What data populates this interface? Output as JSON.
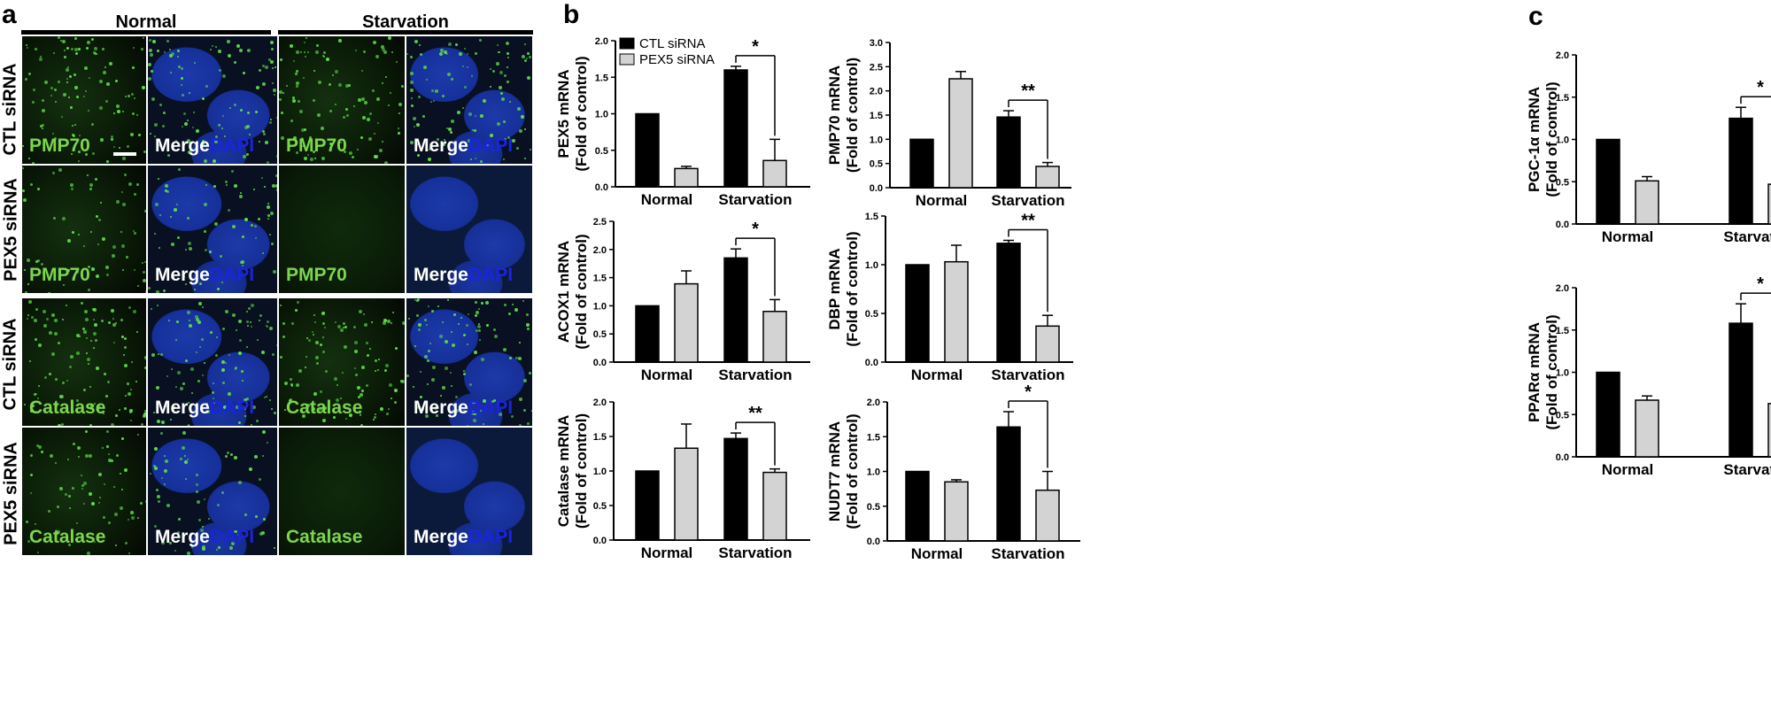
{
  "panels": {
    "a": "a",
    "b": "b",
    "c": "c"
  },
  "micrograph": {
    "col_normal": "Normal",
    "col_starvation": "Starvation",
    "rows": [
      {
        "label": "CTL siRNA",
        "stain": "PMP70"
      },
      {
        "label": "PEX5 siRNA",
        "stain": "PMP70"
      },
      {
        "label": "CTL siRNA",
        "stain": "Catalase"
      },
      {
        "label": "PEX5 siRNA",
        "stain": "Catalase"
      }
    ],
    "merge_label": "Merge",
    "dapi_label": "DAPI",
    "colors": {
      "green": "#7cd64b",
      "blue": "#1a24e0"
    }
  },
  "chart_data": [
    {
      "type": "bar",
      "ylabel_line1": "PEX5 mRNA",
      "ylabel_line2": "(Fold of control)",
      "categories": [
        "Normal",
        "Starvation"
      ],
      "series": [
        {
          "name": "CTL siRNA",
          "values": [
            1.0,
            1.6
          ],
          "errors": [
            0,
            0.05
          ]
        },
        {
          "name": "PEX5 siRNA",
          "values": [
            0.25,
            0.36
          ],
          "errors": [
            0.03,
            0.29
          ]
        }
      ],
      "ylim": [
        0,
        2.0
      ],
      "yticks": [
        "0.0",
        "0.5",
        "1.0",
        "1.5",
        "2.0"
      ],
      "sig": {
        "label": "*",
        "group": 1
      },
      "legend": true
    },
    {
      "type": "bar",
      "ylabel_line1": "PMP70 mRNA",
      "ylabel_line2": "(Fold of control)",
      "categories": [
        "Normal",
        "Starvation"
      ],
      "series": [
        {
          "name": "CTL siRNA",
          "values": [
            1.0,
            1.46
          ],
          "errors": [
            0,
            0.13
          ]
        },
        {
          "name": "PEX5 siRNA",
          "values": [
            2.25,
            0.44
          ],
          "errors": [
            0.15,
            0.08
          ]
        }
      ],
      "ylim": [
        0,
        3.0
      ],
      "yticks": [
        "0.0",
        "0.5",
        "1.0",
        "1.5",
        "2.0",
        "2.5",
        "3.0"
      ],
      "sig": {
        "label": "**",
        "group": 1
      }
    },
    {
      "type": "bar",
      "ylabel_line1": "ACOX1 mRNA",
      "ylabel_line2": "(Fold of control)",
      "categories": [
        "Normal",
        "Starvation"
      ],
      "series": [
        {
          "name": "CTL siRNA",
          "values": [
            1.0,
            1.85
          ],
          "errors": [
            0,
            0.16
          ]
        },
        {
          "name": "PEX5 siRNA",
          "values": [
            1.39,
            0.9
          ],
          "errors": [
            0.23,
            0.21
          ]
        }
      ],
      "ylim": [
        0,
        2.5
      ],
      "yticks": [
        "0.0",
        "0.5",
        "1.0",
        "1.5",
        "2.0",
        "2.5"
      ],
      "sig": {
        "label": "*",
        "group": 1
      }
    },
    {
      "type": "bar",
      "ylabel_line1": "DBP mRNA",
      "ylabel_line2": "(Fold of control)",
      "categories": [
        "Normal",
        "Starvation"
      ],
      "series": [
        {
          "name": "CTL siRNA",
          "values": [
            1.0,
            1.22
          ],
          "errors": [
            0,
            0.03
          ]
        },
        {
          "name": "PEX5 siRNA",
          "values": [
            1.03,
            0.37
          ],
          "errors": [
            0.17,
            0.11
          ]
        }
      ],
      "ylim": [
        0,
        1.5
      ],
      "yticks": [
        "0.0",
        "0.5",
        "1.0",
        "1.5"
      ],
      "sig": {
        "label": "**",
        "group": 1
      }
    },
    {
      "type": "bar",
      "ylabel_line1": "Catalase mRNA",
      "ylabel_line2": "(Fold of control)",
      "categories": [
        "Normal",
        "Starvation"
      ],
      "series": [
        {
          "name": "CTL siRNA",
          "values": [
            1.0,
            1.47
          ],
          "errors": [
            0,
            0.08
          ]
        },
        {
          "name": "PEX5 siRNA",
          "values": [
            1.33,
            0.98
          ],
          "errors": [
            0.35,
            0.05
          ]
        }
      ],
      "ylim": [
        0,
        2.0
      ],
      "yticks": [
        "0.0",
        "0.5",
        "1.0",
        "1.5",
        "2.0"
      ],
      "sig": {
        "label": "**",
        "group": 1
      }
    },
    {
      "type": "bar",
      "ylabel_line1": "NUDT7 mRNA",
      "ylabel_line2": "(Fold of control)",
      "categories": [
        "Normal",
        "Starvation"
      ],
      "series": [
        {
          "name": "CTL siRNA",
          "values": [
            1.0,
            1.64
          ],
          "errors": [
            0,
            0.22
          ]
        },
        {
          "name": "PEX5 siRNA",
          "values": [
            0.85,
            0.73
          ],
          "errors": [
            0.03,
            0.27
          ]
        }
      ],
      "ylim": [
        0,
        2.0
      ],
      "yticks": [
        "0.0",
        "0.5",
        "1.0",
        "1.5",
        "2.0"
      ],
      "sig": {
        "label": "*",
        "group": 1
      }
    },
    {
      "type": "bar",
      "ylabel_line1": "PGC-1α mRNA",
      "ylabel_line2": "(Fold of control)",
      "categories": [
        "Normal",
        "Starvation"
      ],
      "series": [
        {
          "name": "CTL siRNA",
          "values": [
            1.0,
            1.25
          ],
          "errors": [
            0,
            0.13
          ]
        },
        {
          "name": "PEX5 siRNA",
          "values": [
            0.51,
            0.47
          ],
          "errors": [
            0.05,
            0.14
          ]
        }
      ],
      "ylim": [
        0,
        2.0
      ],
      "yticks": [
        "0.0",
        "0.5",
        "1.0",
        "1.5",
        "2.0"
      ],
      "sig": {
        "label": "*",
        "group": 1
      }
    },
    {
      "type": "bar",
      "ylabel_line1": "PPARα mRNA",
      "ylabel_line2": "(Fold of control)",
      "categories": [
        "Normal",
        "Starvation"
      ],
      "series": [
        {
          "name": "CTL siRNA",
          "values": [
            1.0,
            1.58
          ],
          "errors": [
            0,
            0.23
          ]
        },
        {
          "name": "PEX5 siRNA",
          "values": [
            0.67,
            0.63
          ],
          "errors": [
            0.05,
            0.03
          ]
        }
      ],
      "ylim": [
        0,
        2.0
      ],
      "yticks": [
        "0.0",
        "0.5",
        "1.0",
        "1.5",
        "2.0"
      ],
      "sig": {
        "label": "*",
        "group": 1
      }
    }
  ]
}
